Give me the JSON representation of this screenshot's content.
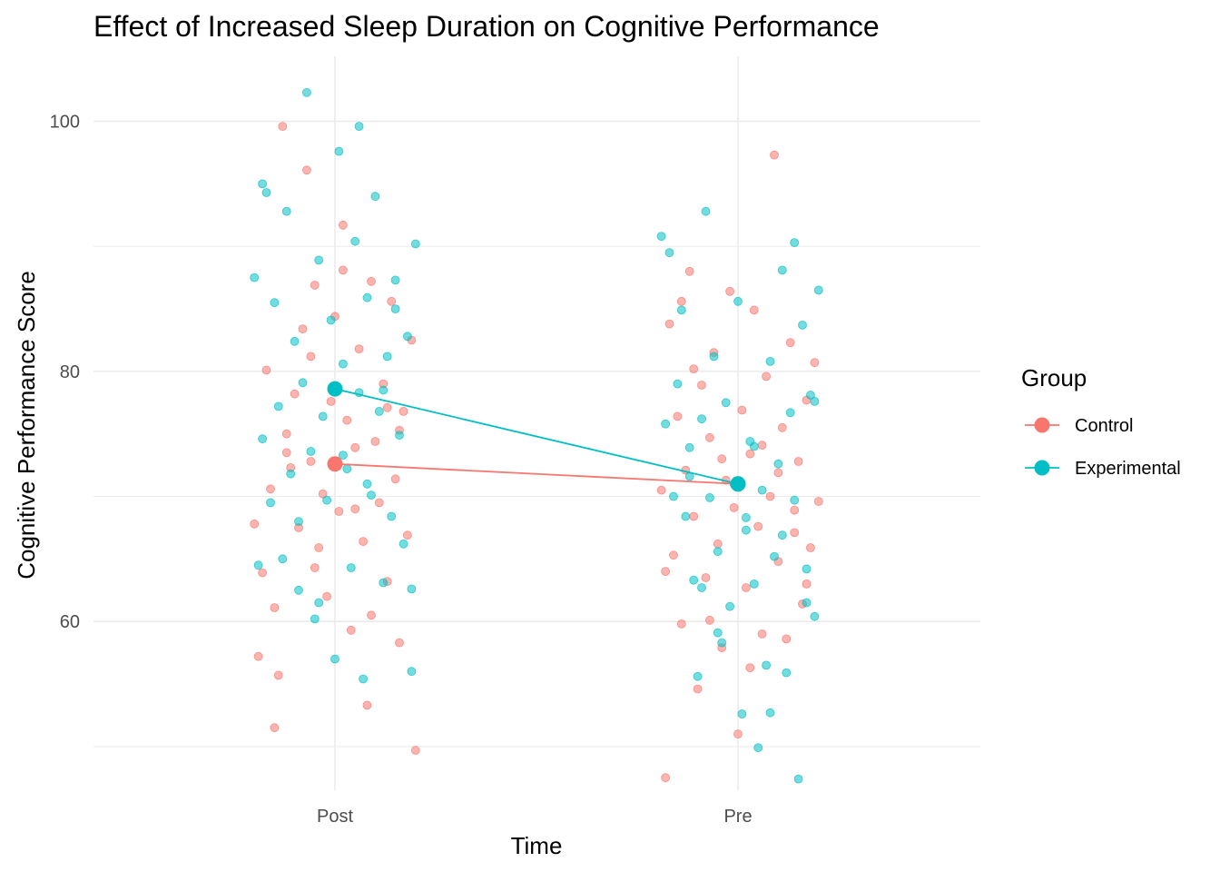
{
  "chart_data": {
    "type": "scatter",
    "title": "Effect of Increased Sleep Duration on Cognitive Performance",
    "xlabel": "Time",
    "ylabel": "Cognitive Performance Score",
    "categories": [
      "Post",
      "Pre"
    ],
    "y_ticks": [
      60,
      80,
      100
    ],
    "ylim": [
      46.5,
      105.2
    ],
    "grid": true,
    "legend": {
      "title": "Group",
      "position": "right"
    },
    "colors": {
      "Control": "#F8766D",
      "Experimental": "#00BFC4",
      "grid": "#ebebeb",
      "tick_text": "#4d4d4d"
    },
    "means": [
      {
        "name": "Control",
        "values": [
          72.6,
          71.0
        ]
      },
      {
        "name": "Experimental",
        "values": [
          78.6,
          71.0
        ]
      }
    ],
    "series": [
      {
        "name": "Control",
        "points": [
          [
            "Post",
            -0.2,
            67.8
          ],
          [
            "Post",
            -0.18,
            63.9
          ],
          [
            "Post",
            -0.17,
            80.1
          ],
          [
            "Post",
            -0.16,
            70.6
          ],
          [
            "Post",
            -0.15,
            61.1
          ],
          [
            "Post",
            -0.14,
            55.7
          ],
          [
            "Post",
            -0.13,
            99.6
          ],
          [
            "Post",
            -0.12,
            75.0
          ],
          [
            "Post",
            -0.11,
            72.3
          ],
          [
            "Post",
            -0.1,
            78.2
          ],
          [
            "Post",
            -0.09,
            67.5
          ],
          [
            "Post",
            -0.08,
            83.4
          ],
          [
            "Post",
            -0.07,
            96.1
          ],
          [
            "Post",
            -0.06,
            72.8
          ],
          [
            "Post",
            -0.05,
            86.9
          ],
          [
            "Post",
            -0.04,
            65.9
          ],
          [
            "Post",
            -0.03,
            70.2
          ],
          [
            "Post",
            -0.02,
            62.0
          ],
          [
            "Post",
            -0.01,
            77.6
          ],
          [
            "Post",
            0.0,
            84.4
          ],
          [
            "Post",
            0.01,
            68.8
          ],
          [
            "Post",
            0.02,
            91.7
          ],
          [
            "Post",
            0.03,
            76.1
          ],
          [
            "Post",
            0.04,
            59.3
          ],
          [
            "Post",
            0.05,
            73.9
          ],
          [
            "Post",
            0.06,
            81.8
          ],
          [
            "Post",
            0.07,
            66.4
          ],
          [
            "Post",
            0.08,
            53.3
          ],
          [
            "Post",
            0.09,
            87.2
          ],
          [
            "Post",
            0.1,
            74.4
          ],
          [
            "Post",
            0.11,
            69.5
          ],
          [
            "Post",
            0.12,
            79.0
          ],
          [
            "Post",
            0.13,
            63.2
          ],
          [
            "Post",
            0.14,
            85.6
          ],
          [
            "Post",
            0.15,
            71.4
          ],
          [
            "Post",
            0.16,
            58.3
          ],
          [
            "Post",
            0.17,
            76.8
          ],
          [
            "Post",
            0.18,
            66.9
          ],
          [
            "Post",
            0.19,
            82.5
          ],
          [
            "Post",
            0.2,
            49.7
          ],
          [
            "Post",
            -0.19,
            57.2
          ],
          [
            "Post",
            -0.12,
            73.5
          ],
          [
            "Post",
            -0.05,
            64.3
          ],
          [
            "Post",
            0.02,
            88.1
          ],
          [
            "Post",
            0.09,
            60.5
          ],
          [
            "Post",
            0.16,
            75.3
          ],
          [
            "Post",
            -0.15,
            51.5
          ],
          [
            "Post",
            -0.06,
            81.2
          ],
          [
            "Post",
            0.05,
            69.0
          ],
          [
            "Post",
            0.13,
            77.1
          ],
          [
            "Pre",
            -0.19,
            70.5
          ],
          [
            "Pre",
            -0.18,
            47.5
          ],
          [
            "Pre",
            -0.17,
            83.8
          ],
          [
            "Pre",
            -0.16,
            65.3
          ],
          [
            "Pre",
            -0.15,
            76.4
          ],
          [
            "Pre",
            -0.14,
            59.8
          ],
          [
            "Pre",
            -0.13,
            72.1
          ],
          [
            "Pre",
            -0.12,
            88.0
          ],
          [
            "Pre",
            -0.11,
            68.4
          ],
          [
            "Pre",
            -0.1,
            54.6
          ],
          [
            "Pre",
            -0.09,
            78.9
          ],
          [
            "Pre",
            -0.08,
            63.5
          ],
          [
            "Pre",
            -0.07,
            74.7
          ],
          [
            "Pre",
            -0.06,
            81.5
          ],
          [
            "Pre",
            -0.05,
            66.2
          ],
          [
            "Pre",
            -0.04,
            57.9
          ],
          [
            "Pre",
            -0.03,
            71.3
          ],
          [
            "Pre",
            -0.02,
            86.4
          ],
          [
            "Pre",
            -0.01,
            69.1
          ],
          [
            "Pre",
            0.0,
            51.0
          ],
          [
            "Pre",
            0.01,
            76.9
          ],
          [
            "Pre",
            0.02,
            62.7
          ],
          [
            "Pre",
            0.03,
            73.4
          ],
          [
            "Pre",
            0.04,
            84.9
          ],
          [
            "Pre",
            0.05,
            67.6
          ],
          [
            "Pre",
            0.06,
            59.0
          ],
          [
            "Pre",
            0.07,
            79.6
          ],
          [
            "Pre",
            0.08,
            70.0
          ],
          [
            "Pre",
            0.09,
            97.3
          ],
          [
            "Pre",
            0.1,
            64.8
          ],
          [
            "Pre",
            0.11,
            75.5
          ],
          [
            "Pre",
            0.12,
            58.6
          ],
          [
            "Pre",
            0.13,
            82.3
          ],
          [
            "Pre",
            0.14,
            68.9
          ],
          [
            "Pre",
            0.15,
            72.8
          ],
          [
            "Pre",
            0.16,
            61.4
          ],
          [
            "Pre",
            0.17,
            77.7
          ],
          [
            "Pre",
            0.18,
            65.9
          ],
          [
            "Pre",
            0.19,
            80.7
          ],
          [
            "Pre",
            0.2,
            69.6
          ],
          [
            "Pre",
            -0.18,
            64.0
          ],
          [
            "Pre",
            -0.11,
            80.2
          ],
          [
            "Pre",
            -0.04,
            73.0
          ],
          [
            "Pre",
            0.03,
            56.3
          ],
          [
            "Pre",
            0.1,
            71.9
          ],
          [
            "Pre",
            0.17,
            63.0
          ],
          [
            "Pre",
            -0.14,
            85.6
          ],
          [
            "Pre",
            -0.07,
            60.1
          ],
          [
            "Pre",
            0.06,
            74.1
          ],
          [
            "Pre",
            0.14,
            67.1
          ]
        ]
      },
      {
        "name": "Experimental",
        "points": [
          [
            "Post",
            -0.2,
            87.5
          ],
          [
            "Post",
            -0.19,
            64.5
          ],
          [
            "Post",
            -0.18,
            74.6
          ],
          [
            "Post",
            -0.17,
            94.3
          ],
          [
            "Post",
            -0.16,
            69.5
          ],
          [
            "Post",
            -0.15,
            85.5
          ],
          [
            "Post",
            -0.14,
            77.2
          ],
          [
            "Post",
            -0.13,
            65.0
          ],
          [
            "Post",
            -0.12,
            92.8
          ],
          [
            "Post",
            -0.11,
            71.8
          ],
          [
            "Post",
            -0.1,
            82.4
          ],
          [
            "Post",
            -0.09,
            68.0
          ],
          [
            "Post",
            -0.08,
            79.1
          ],
          [
            "Post",
            -0.07,
            102.3
          ],
          [
            "Post",
            -0.06,
            73.6
          ],
          [
            "Post",
            -0.05,
            60.2
          ],
          [
            "Post",
            -0.04,
            88.9
          ],
          [
            "Post",
            -0.03,
            76.4
          ],
          [
            "Post",
            -0.02,
            69.7
          ],
          [
            "Post",
            -0.01,
            84.1
          ],
          [
            "Post",
            0.0,
            57.0
          ],
          [
            "Post",
            0.01,
            97.6
          ],
          [
            "Post",
            0.02,
            80.6
          ],
          [
            "Post",
            0.03,
            72.2
          ],
          [
            "Post",
            0.04,
            64.3
          ],
          [
            "Post",
            0.05,
            90.4
          ],
          [
            "Post",
            0.06,
            78.3
          ],
          [
            "Post",
            0.07,
            55.4
          ],
          [
            "Post",
            0.08,
            85.9
          ],
          [
            "Post",
            0.09,
            70.1
          ],
          [
            "Post",
            0.1,
            94.0
          ],
          [
            "Post",
            0.11,
            76.8
          ],
          [
            "Post",
            0.12,
            63.1
          ],
          [
            "Post",
            0.13,
            81.2
          ],
          [
            "Post",
            0.14,
            68.4
          ],
          [
            "Post",
            0.15,
            87.3
          ],
          [
            "Post",
            0.16,
            74.9
          ],
          [
            "Post",
            0.17,
            66.2
          ],
          [
            "Post",
            0.18,
            82.8
          ],
          [
            "Post",
            0.19,
            56.0
          ],
          [
            "Post",
            0.2,
            90.2
          ],
          [
            "Post",
            -0.18,
            95.0
          ],
          [
            "Post",
            -0.09,
            62.5
          ],
          [
            "Post",
            0.02,
            73.3
          ],
          [
            "Post",
            0.06,
            99.6
          ],
          [
            "Post",
            0.12,
            78.5
          ],
          [
            "Post",
            0.19,
            62.6
          ],
          [
            "Post",
            -0.04,
            61.5
          ],
          [
            "Post",
            0.08,
            71.0
          ],
          [
            "Post",
            0.15,
            85.0
          ],
          [
            "Pre",
            -0.19,
            90.8
          ],
          [
            "Pre",
            -0.18,
            75.8
          ],
          [
            "Pre",
            -0.17,
            89.5
          ],
          [
            "Pre",
            -0.16,
            70.0
          ],
          [
            "Pre",
            -0.15,
            79.0
          ],
          [
            "Pre",
            -0.14,
            84.9
          ],
          [
            "Pre",
            -0.13,
            68.4
          ],
          [
            "Pre",
            -0.12,
            73.9
          ],
          [
            "Pre",
            -0.11,
            63.3
          ],
          [
            "Pre",
            -0.1,
            55.6
          ],
          [
            "Pre",
            -0.09,
            76.2
          ],
          [
            "Pre",
            -0.08,
            92.8
          ],
          [
            "Pre",
            -0.07,
            69.9
          ],
          [
            "Pre",
            -0.06,
            81.2
          ],
          [
            "Pre",
            -0.05,
            65.6
          ],
          [
            "Pre",
            -0.04,
            58.3
          ],
          [
            "Pre",
            -0.03,
            77.5
          ],
          [
            "Pre",
            -0.02,
            61.2
          ],
          [
            "Pre",
            -0.01,
            71.0
          ],
          [
            "Pre",
            0.0,
            85.6
          ],
          [
            "Pre",
            0.01,
            52.6
          ],
          [
            "Pre",
            0.02,
            67.3
          ],
          [
            "Pre",
            0.03,
            74.4
          ],
          [
            "Pre",
            0.04,
            63.0
          ],
          [
            "Pre",
            0.05,
            49.9
          ],
          [
            "Pre",
            0.06,
            70.5
          ],
          [
            "Pre",
            0.07,
            56.5
          ],
          [
            "Pre",
            0.08,
            80.8
          ],
          [
            "Pre",
            0.09,
            65.2
          ],
          [
            "Pre",
            0.1,
            72.6
          ],
          [
            "Pre",
            0.11,
            88.1
          ],
          [
            "Pre",
            0.12,
            55.9
          ],
          [
            "Pre",
            0.13,
            76.7
          ],
          [
            "Pre",
            0.14,
            69.7
          ],
          [
            "Pre",
            0.15,
            47.4
          ],
          [
            "Pre",
            0.16,
            83.7
          ],
          [
            "Pre",
            0.17,
            64.2
          ],
          [
            "Pre",
            0.18,
            78.1
          ],
          [
            "Pre",
            0.19,
            60.4
          ],
          [
            "Pre",
            0.2,
            86.5
          ],
          [
            "Pre",
            -0.12,
            71.6
          ],
          [
            "Pre",
            -0.05,
            59.1
          ],
          [
            "Pre",
            0.04,
            74.0
          ],
          [
            "Pre",
            0.08,
            52.7
          ],
          [
            "Pre",
            0.11,
            66.9
          ],
          [
            "Pre",
            0.14,
            90.3
          ],
          [
            "Pre",
            0.17,
            61.5
          ],
          [
            "Pre",
            0.19,
            77.6
          ],
          [
            "Pre",
            -0.09,
            62.7
          ],
          [
            "Pre",
            0.02,
            68.3
          ]
        ]
      }
    ]
  }
}
